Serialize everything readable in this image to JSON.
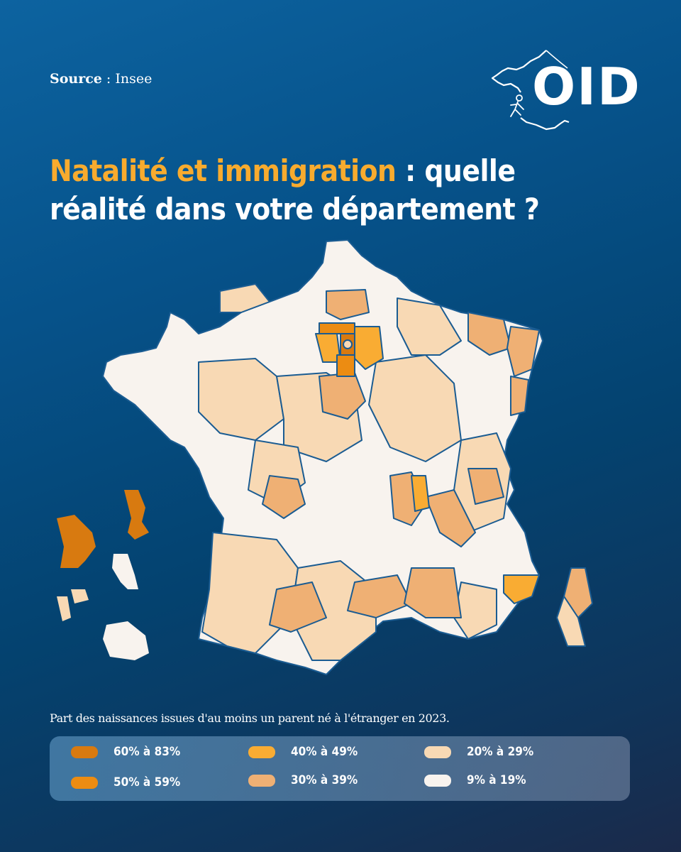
{
  "source": {
    "label": "Source",
    "separator": " : ",
    "value": "Insee"
  },
  "logo": {
    "text": "OID"
  },
  "title": {
    "highlight": "Natalité et immigration",
    "rest_line1": " : quelle",
    "line2": "réalité dans votre département ?"
  },
  "caption": "Part des naissances issues d'au moins un parent né à l'étranger en 2023.",
  "colors": {
    "c60_83": "#d87a10",
    "c50_59": "#ec8c12",
    "c40_49": "#f9ac33",
    "c30_39": "#efb074",
    "c20_29": "#f8d9b4",
    "c9_19": "#f8f3ee",
    "border": "#1b5c92",
    "accent": "#f8ab2e"
  },
  "legend": [
    {
      "label": "60% à 83%",
      "color": "#d87a10"
    },
    {
      "label": "50% à 59%",
      "color": "#ec8c12"
    },
    {
      "label": "40% à 49%",
      "color": "#f9ac33"
    },
    {
      "label": "30% à 39%",
      "color": "#efb074"
    },
    {
      "label": "20% à 29%",
      "color": "#f8d9b4"
    },
    {
      "label": "9% à 19%",
      "color": "#f8f3ee"
    }
  ]
}
